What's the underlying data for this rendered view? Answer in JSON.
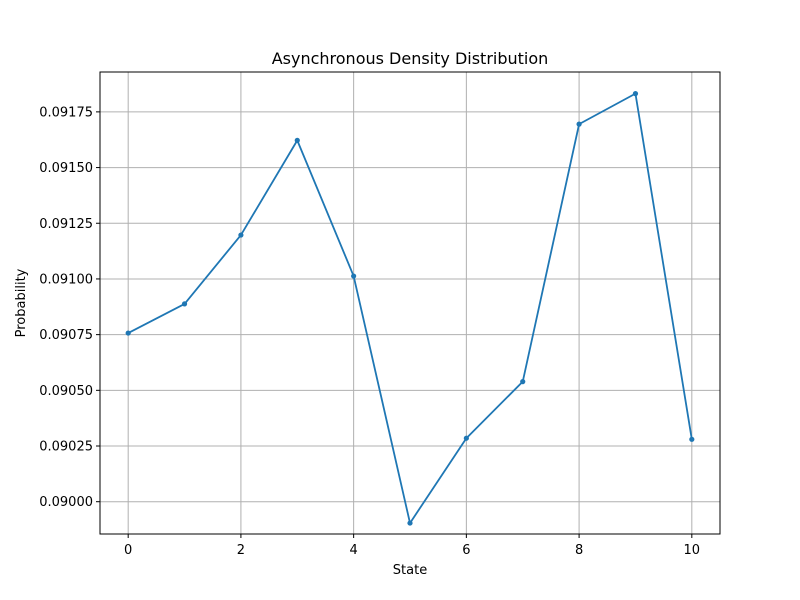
{
  "chart_data": {
    "type": "line",
    "title": "Asynchronous Density Distribution",
    "xlabel": "State",
    "ylabel": "Probability",
    "x": [
      0,
      1,
      2,
      3,
      4,
      5,
      6,
      7,
      8,
      9,
      10
    ],
    "series": [
      {
        "values": [
          0.090757,
          0.090888,
          0.091197,
          0.091622,
          0.091013,
          0.089904,
          0.090285,
          0.090539,
          0.091695,
          0.091832,
          0.09028
        ],
        "color": "#1f77b4",
        "marker": "circle"
      }
    ],
    "xlim": [
      -0.5,
      10.5
    ],
    "ylim": [
      0.089855,
      0.091929
    ],
    "xticks": [
      0,
      2,
      4,
      6,
      8,
      10
    ],
    "xtick_labels": [
      "0",
      "2",
      "4",
      "6",
      "8",
      "10"
    ],
    "yticks": [
      0.09,
      0.09025,
      0.0905,
      0.09075,
      0.091,
      0.09125,
      0.0915,
      0.09175
    ],
    "ytick_labels": [
      "0.09000",
      "0.09025",
      "0.09050",
      "0.09075",
      "0.09100",
      "0.09125",
      "0.09150",
      "0.09175"
    ],
    "grid": true,
    "grid_color": "#b0b0b0"
  }
}
